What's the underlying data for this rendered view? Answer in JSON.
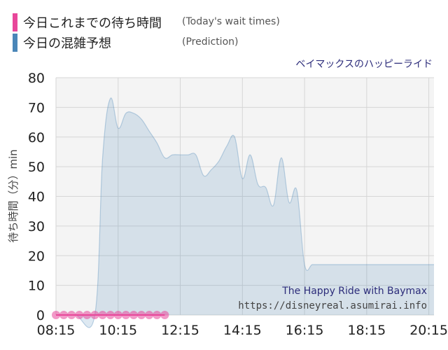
{
  "legend": {
    "actual": {
      "label": "今日これまでの待ち時間",
      "sub": "(Today's wait times)",
      "color": "#e8479a"
    },
    "prediction": {
      "label": "今日の混雑予想",
      "sub": "(Prediction)",
      "color": "#4a86b8"
    }
  },
  "attraction_name": "ベイマックスのハッピーライド",
  "watermark": {
    "line1": "The Happy Ride with Baymax",
    "line2": "https://disneyreal.asumirai.info"
  },
  "chart_data": {
    "type": "area",
    "ylabel": "待ち時間（分）min",
    "ylim": [
      0,
      80
    ],
    "yticks": [
      0,
      10,
      20,
      30,
      40,
      50,
      60,
      70,
      80
    ],
    "xlim_minutes": [
      495,
      1225
    ],
    "xticks": [
      "08:15",
      "10:15",
      "12:15",
      "14:15",
      "16:15",
      "18:15",
      "20:15"
    ],
    "x_unit": "time of day",
    "grid": true,
    "series": [
      {
        "key": "prediction",
        "style": "area",
        "color": "#4a86b8",
        "x": [
          "08:15",
          "08:52",
          "09:30",
          "09:45",
          "10:00",
          "10:15",
          "10:30",
          "10:45",
          "11:00",
          "11:15",
          "11:30",
          "11:45",
          "12:00",
          "12:15",
          "12:30",
          "12:45",
          "13:00",
          "13:15",
          "13:30",
          "13:45",
          "14:00",
          "14:15",
          "14:30",
          "14:45",
          "15:00",
          "15:15",
          "15:30",
          "15:45",
          "16:00",
          "16:15",
          "16:30",
          "16:45",
          "17:00",
          "17:15",
          "17:30",
          "17:45",
          "18:00",
          "18:15",
          "18:30",
          "18:45",
          "19:00",
          "19:15",
          "19:30",
          "19:45",
          "20:00",
          "20:15",
          "20:30"
        ],
        "values": [
          0,
          0,
          0,
          53,
          73,
          63,
          68,
          68,
          66,
          62,
          58,
          53,
          54,
          54,
          54,
          54,
          47,
          49,
          52,
          57,
          60,
          46,
          54,
          44,
          43,
          37,
          53,
          38,
          42,
          17,
          17,
          17,
          17,
          17,
          17,
          17,
          17,
          17,
          17,
          17,
          17,
          17,
          17,
          17,
          17,
          17,
          17
        ]
      },
      {
        "key": "actual",
        "style": "points",
        "color": "#e8479a",
        "x": [
          "08:15",
          "08:30",
          "08:45",
          "09:00",
          "09:15",
          "09:30",
          "09:45",
          "10:00",
          "10:15",
          "10:30",
          "10:45",
          "11:00",
          "11:15",
          "11:30",
          "11:45"
        ],
        "values": [
          0,
          0,
          0,
          0,
          0,
          0,
          0,
          0,
          0,
          0,
          0,
          0,
          0,
          0,
          0
        ]
      }
    ]
  }
}
